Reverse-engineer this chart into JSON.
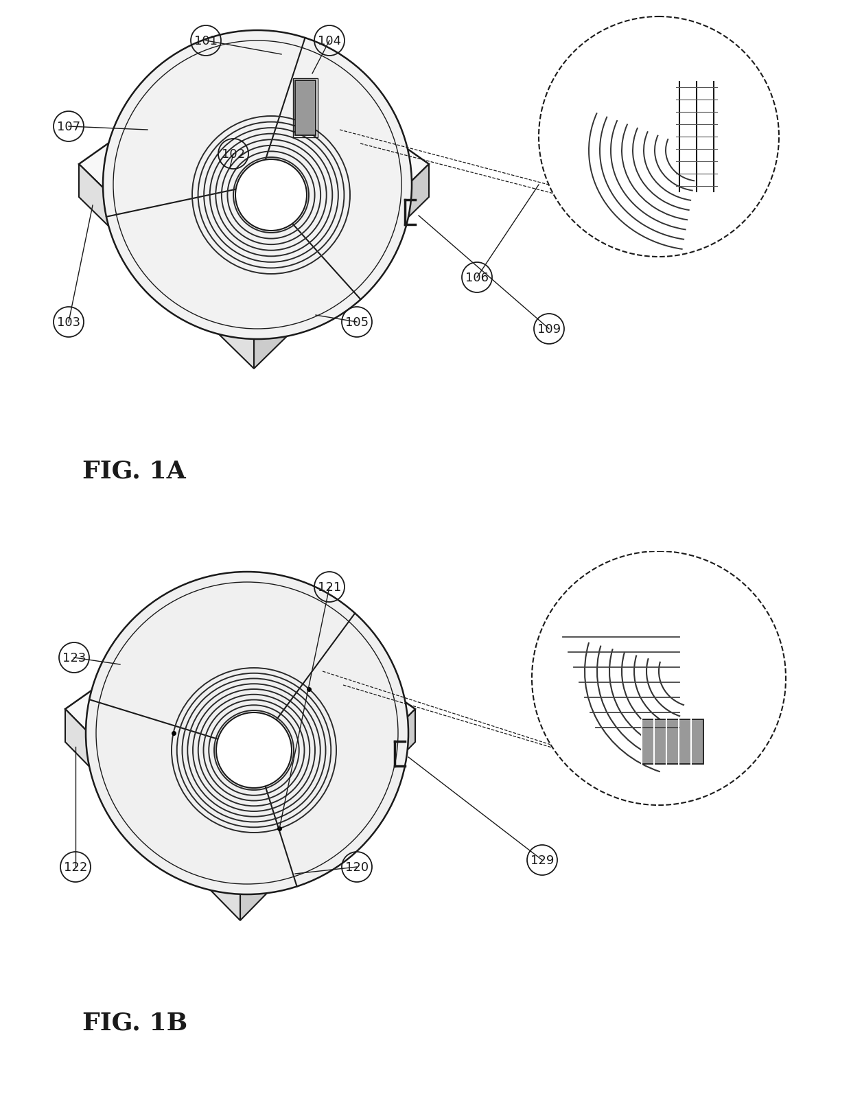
{
  "fig_title_1a": "FIG. 1A",
  "fig_title_1b": "FIG. 1B",
  "background_color": "#ffffff",
  "line_color": "#1a1a1a",
  "title_fontsize": 26,
  "label_fontsize": 13
}
